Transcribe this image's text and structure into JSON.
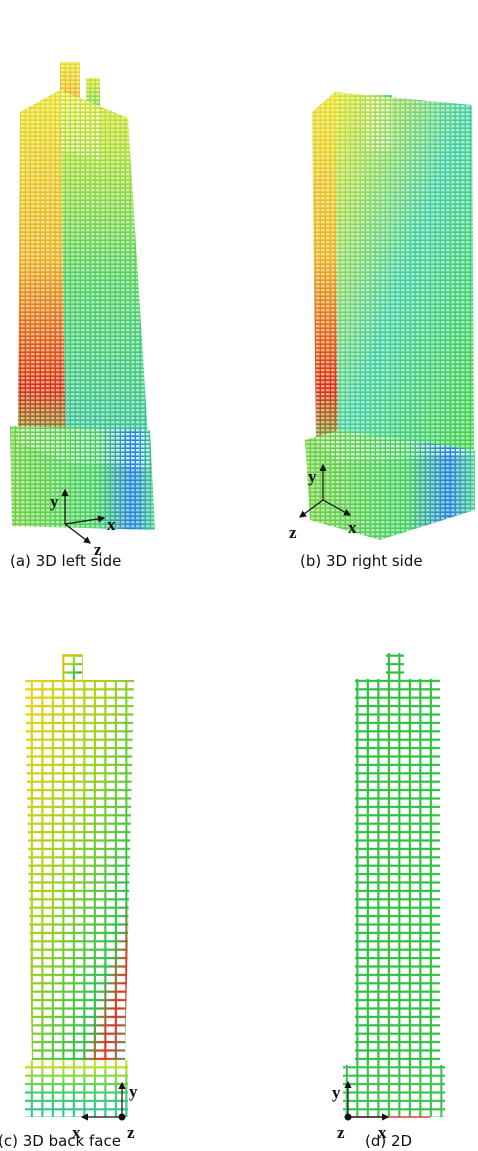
{
  "panels": [
    {
      "caption": "(a) 3D left side",
      "axes": {
        "x": "x",
        "y": "y",
        "z": "z"
      }
    },
    {
      "caption": "(b) 3D right side",
      "axes": {
        "x": "x",
        "y": "y",
        "z": "z"
      }
    },
    {
      "caption": "(c) 3D back face",
      "axes": {
        "x": "x",
        "y": "y",
        "z": "z"
      }
    },
    {
      "caption": "(d) 2D",
      "axes": {
        "x": "x",
        "y": "y",
        "z": "z"
      }
    }
  ]
}
